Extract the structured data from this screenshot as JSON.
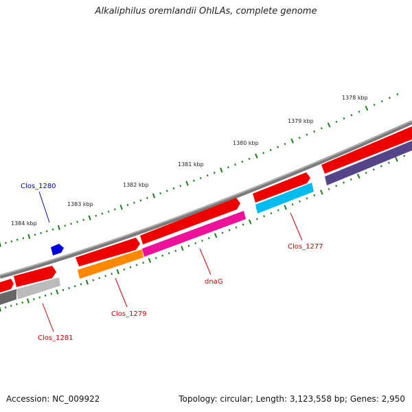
{
  "title": "Alkaliphilus oremlandii OhILAs, complete genome",
  "footer": {
    "accession": "Accession: NC_009922",
    "summary": "Topology: circular; Length: 3,123,558 bp; Genes: 2,950"
  },
  "scale_labels": [
    "1378 kbp",
    "1379 kbp",
    "1380 kbp",
    "1381 kbp",
    "1382 kbp",
    "1383 kbp",
    "1384 kbp"
  ],
  "gene_labels": [
    {
      "text": "Clos_1280",
      "color": "#0000cc"
    },
    {
      "text": "Clos_1277",
      "color": "#cc0000"
    },
    {
      "text": "dnaG",
      "color": "#cc0000"
    },
    {
      "text": "Clos_1279",
      "color": "#cc0000"
    },
    {
      "text": "Clos_1281",
      "color": "#cc0000"
    }
  ],
  "colors": {
    "backbone": "#808080",
    "cds": "#ee0000",
    "tick": "#1a7a1a",
    "clos_1280": "#0000dd",
    "clos_1277": "#00bbee",
    "dnaG": "#ee1199",
    "clos_1279": "#ff8800",
    "clos_1281": "#bbbbbb",
    "dark_left": "#666666",
    "dark_right": "#554488"
  }
}
